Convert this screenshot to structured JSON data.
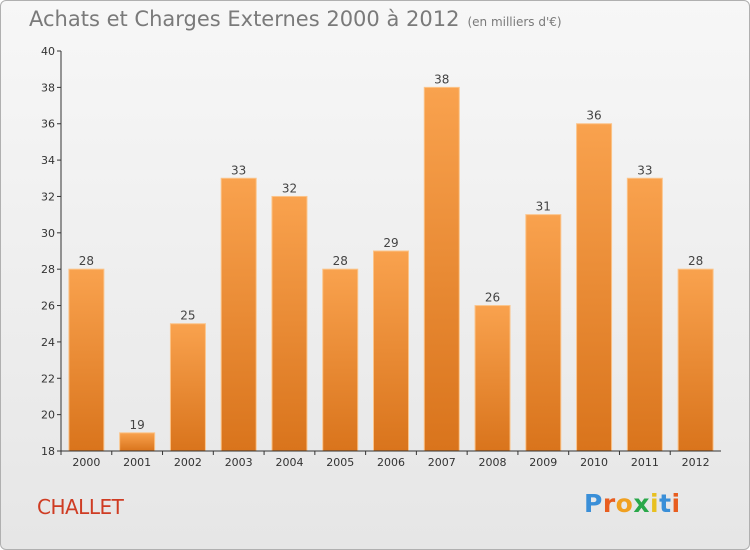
{
  "header": {
    "title": "Achats et Charges Externes 2000 à 2012",
    "subtitle": "(en milliers d'€)"
  },
  "footer": {
    "town": "CHALLET",
    "logo": [
      "P",
      "r",
      "o",
      "x",
      "i",
      "t",
      "i"
    ]
  },
  "colors": {
    "bar_top": "#f9a24e",
    "bar_bottom": "#d9741c",
    "bar_edge": "#fbc48a",
    "logo": [
      "#3a8fd8",
      "#e85d1f",
      "#f0a020",
      "#2aa84a",
      "#e8c020",
      "#3a8fd8",
      "#e85d1f"
    ]
  },
  "chart_data": {
    "type": "bar",
    "categories": [
      "2000",
      "2001",
      "2002",
      "2003",
      "2004",
      "2005",
      "2006",
      "2007",
      "2008",
      "2009",
      "2010",
      "2011",
      "2012"
    ],
    "values": [
      28,
      19,
      25,
      33,
      32,
      28,
      29,
      38,
      26,
      31,
      36,
      33,
      28
    ],
    "ylim": [
      18,
      40
    ],
    "yticks": [
      18,
      20,
      22,
      24,
      26,
      28,
      30,
      32,
      34,
      36,
      38,
      40
    ],
    "grid": false,
    "title": "Achats et Charges Externes 2000 à 2012",
    "ylabel": "(en milliers d'€)"
  }
}
